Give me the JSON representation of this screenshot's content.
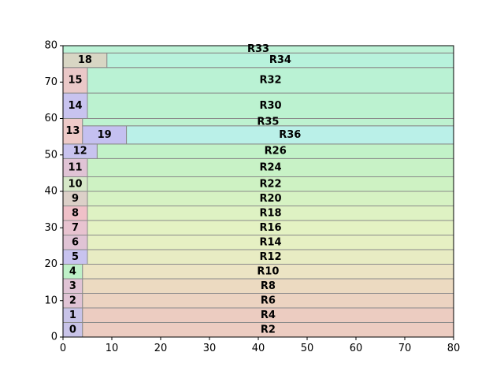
{
  "chart_data": {
    "type": "treemap",
    "title": "",
    "xlabel": "",
    "ylabel": "",
    "xlim": [
      0,
      80
    ],
    "ylim": [
      0,
      80
    ],
    "x_ticks": [
      "0",
      "10",
      "20",
      "30",
      "40",
      "50",
      "60",
      "70",
      "80"
    ],
    "y_ticks": [
      "0",
      "10",
      "20",
      "30",
      "40",
      "50",
      "60",
      "70",
      "80"
    ],
    "grid": false,
    "legend": "none",
    "rects": [
      {
        "label": "0",
        "x0": 0,
        "x1": 4,
        "y0": 0,
        "y1": 4,
        "color": "#c8c3e8"
      },
      {
        "label": "R2",
        "x0": 4,
        "x1": 80,
        "y0": 0,
        "y1": 4,
        "color": "#ecccc1"
      },
      {
        "label": "1",
        "x0": 0,
        "x1": 4,
        "y0": 4,
        "y1": 8,
        "color": "#c8c3e8"
      },
      {
        "label": "R4",
        "x0": 4,
        "x1": 80,
        "y0": 4,
        "y1": 8,
        "color": "#ecccc1"
      },
      {
        "label": "2",
        "x0": 0,
        "x1": 4,
        "y0": 8,
        "y1": 12,
        "color": "#e0c3d5"
      },
      {
        "label": "R6",
        "x0": 4,
        "x1": 80,
        "y0": 8,
        "y1": 12,
        "color": "#ecd3c1"
      },
      {
        "label": "3",
        "x0": 0,
        "x1": 4,
        "y0": 12,
        "y1": 16,
        "color": "#e0c3d5"
      },
      {
        "label": "R8",
        "x0": 4,
        "x1": 80,
        "y0": 12,
        "y1": 16,
        "color": "#ecdac1"
      },
      {
        "label": "4",
        "x0": 0,
        "x1": 4,
        "y0": 16,
        "y1": 20,
        "color": "#bff0c8"
      },
      {
        "label": "R10",
        "x0": 4,
        "x1": 80,
        "y0": 16,
        "y1": 20,
        "color": "#ece4c4"
      },
      {
        "label": "5",
        "x0": 0,
        "x1": 5,
        "y0": 20,
        "y1": 24,
        "color": "#c8c3ef"
      },
      {
        "label": "R12",
        "x0": 5,
        "x1": 80,
        "y0": 20,
        "y1": 24,
        "color": "#e8ecc3"
      },
      {
        "label": "6",
        "x0": 0,
        "x1": 5,
        "y0": 24,
        "y1": 28,
        "color": "#e0c3d5"
      },
      {
        "label": "R14",
        "x0": 5,
        "x1": 80,
        "y0": 24,
        "y1": 28,
        "color": "#e6f0c3"
      },
      {
        "label": "7",
        "x0": 0,
        "x1": 5,
        "y0": 28,
        "y1": 32,
        "color": "#e8c3d0"
      },
      {
        "label": "R16",
        "x0": 5,
        "x1": 80,
        "y0": 28,
        "y1": 32,
        "color": "#e4f2c3"
      },
      {
        "label": "8",
        "x0": 0,
        "x1": 5,
        "y0": 32,
        "y1": 36,
        "color": "#f0c0c8"
      },
      {
        "label": "R18",
        "x0": 5,
        "x1": 80,
        "y0": 32,
        "y1": 36,
        "color": "#def2c3"
      },
      {
        "label": "9",
        "x0": 0,
        "x1": 5,
        "y0": 36,
        "y1": 40,
        "color": "#dcd0c8"
      },
      {
        "label": "R20",
        "x0": 5,
        "x1": 80,
        "y0": 36,
        "y1": 40,
        "color": "#d6f2c3"
      },
      {
        "label": "10",
        "x0": 0,
        "x1": 5,
        "y0": 40,
        "y1": 44,
        "color": "#d6e8c8"
      },
      {
        "label": "R22",
        "x0": 5,
        "x1": 80,
        "y0": 40,
        "y1": 44,
        "color": "#cef2c3"
      },
      {
        "label": "11",
        "x0": 0,
        "x1": 5,
        "y0": 44,
        "y1": 49,
        "color": "#e0c3d5"
      },
      {
        "label": "R24",
        "x0": 5,
        "x1": 80,
        "y0": 44,
        "y1": 49,
        "color": "#c8f2c6"
      },
      {
        "label": "12",
        "x0": 0,
        "x1": 7,
        "y0": 49,
        "y1": 53,
        "color": "#c8c3ef"
      },
      {
        "label": "R26",
        "x0": 7,
        "x1": 80,
        "y0": 49,
        "y1": 53,
        "color": "#c2f2c8"
      },
      {
        "label": "13",
        "x0": 0,
        "x1": 4,
        "y0": 53,
        "y1": 60,
        "color": "#eecac8"
      },
      {
        "label": "19",
        "x0": 4,
        "x1": 13,
        "y0": 53,
        "y1": 58,
        "color": "#c4c0f0"
      },
      {
        "label": "R36",
        "x0": 13,
        "x1": 80,
        "y0": 53,
        "y1": 58,
        "color": "#baf0e8"
      },
      {
        "label": "R35",
        "x0": 4,
        "x1": 80,
        "y0": 58,
        "y1": 60,
        "color": "#bef2d0"
      },
      {
        "label": "14",
        "x0": 0,
        "x1": 5,
        "y0": 60,
        "y1": 67,
        "color": "#c8c3ef"
      },
      {
        "label": "R30",
        "x0": 5,
        "x1": 80,
        "y0": 60,
        "y1": 67,
        "color": "#bcf2d0"
      },
      {
        "label": "15",
        "x0": 0,
        "x1": 5,
        "y0": 67,
        "y1": 74,
        "color": "#eac8c8"
      },
      {
        "label": "R32",
        "x0": 5,
        "x1": 80,
        "y0": 67,
        "y1": 74,
        "color": "#baf2d4"
      },
      {
        "label": "18",
        "x0": 0,
        "x1": 9,
        "y0": 74,
        "y1": 78,
        "color": "#d8d6c4"
      },
      {
        "label": "R34",
        "x0": 9,
        "x1": 80,
        "y0": 74,
        "y1": 78,
        "color": "#b8f2dc"
      },
      {
        "label": "R33",
        "x0": 0,
        "x1": 80,
        "y0": 78,
        "y1": 80,
        "color": "#bcf2d6"
      }
    ]
  }
}
